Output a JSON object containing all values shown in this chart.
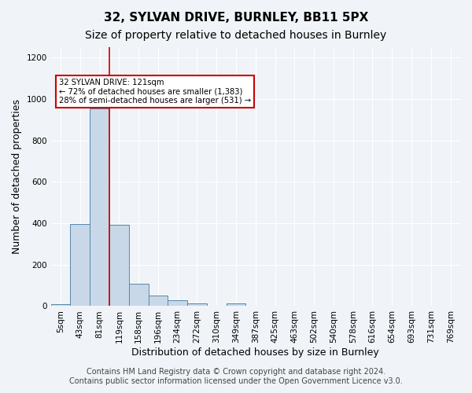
{
  "title1": "32, SYLVAN DRIVE, BURNLEY, BB11 5PX",
  "title2": "Size of property relative to detached houses in Burnley",
  "xlabel": "Distribution of detached houses by size in Burnley",
  "ylabel": "Number of detached properties",
  "bins": [
    "5sqm",
    "43sqm",
    "81sqm",
    "119sqm",
    "158sqm",
    "196sqm",
    "234sqm",
    "272sqm",
    "310sqm",
    "349sqm",
    "387sqm",
    "425sqm",
    "463sqm",
    "502sqm",
    "540sqm",
    "578sqm",
    "616sqm",
    "654sqm",
    "693sqm",
    "731sqm",
    "769sqm"
  ],
  "values": [
    10,
    398,
    955,
    393,
    108,
    50,
    27,
    12,
    0,
    12,
    0,
    0,
    0,
    0,
    0,
    0,
    0,
    0,
    0,
    0,
    0
  ],
  "bar_color": "#c8d8e8",
  "bar_edge_color": "#5588aa",
  "vline_x": 3,
  "vline_color": "#cc0000",
  "annotation_text": "32 SYLVAN DRIVE: 121sqm\n← 72% of detached houses are smaller (1,383)\n28% of semi-detached houses are larger (531) →",
  "annotation_box_color": "white",
  "annotation_box_edge_color": "#cc0000",
  "ylim": [
    0,
    1250
  ],
  "yticks": [
    0,
    200,
    400,
    600,
    800,
    1000,
    1200
  ],
  "footer1": "Contains HM Land Registry data © Crown copyright and database right 2024.",
  "footer2": "Contains public sector information licensed under the Open Government Licence v3.0.",
  "bg_color": "#f0f4f8",
  "plot_bg_color": "#f0f4f8",
  "grid_color": "white",
  "title1_fontsize": 11,
  "title2_fontsize": 10,
  "axis_label_fontsize": 9,
  "tick_fontsize": 7.5,
  "footer_fontsize": 7
}
